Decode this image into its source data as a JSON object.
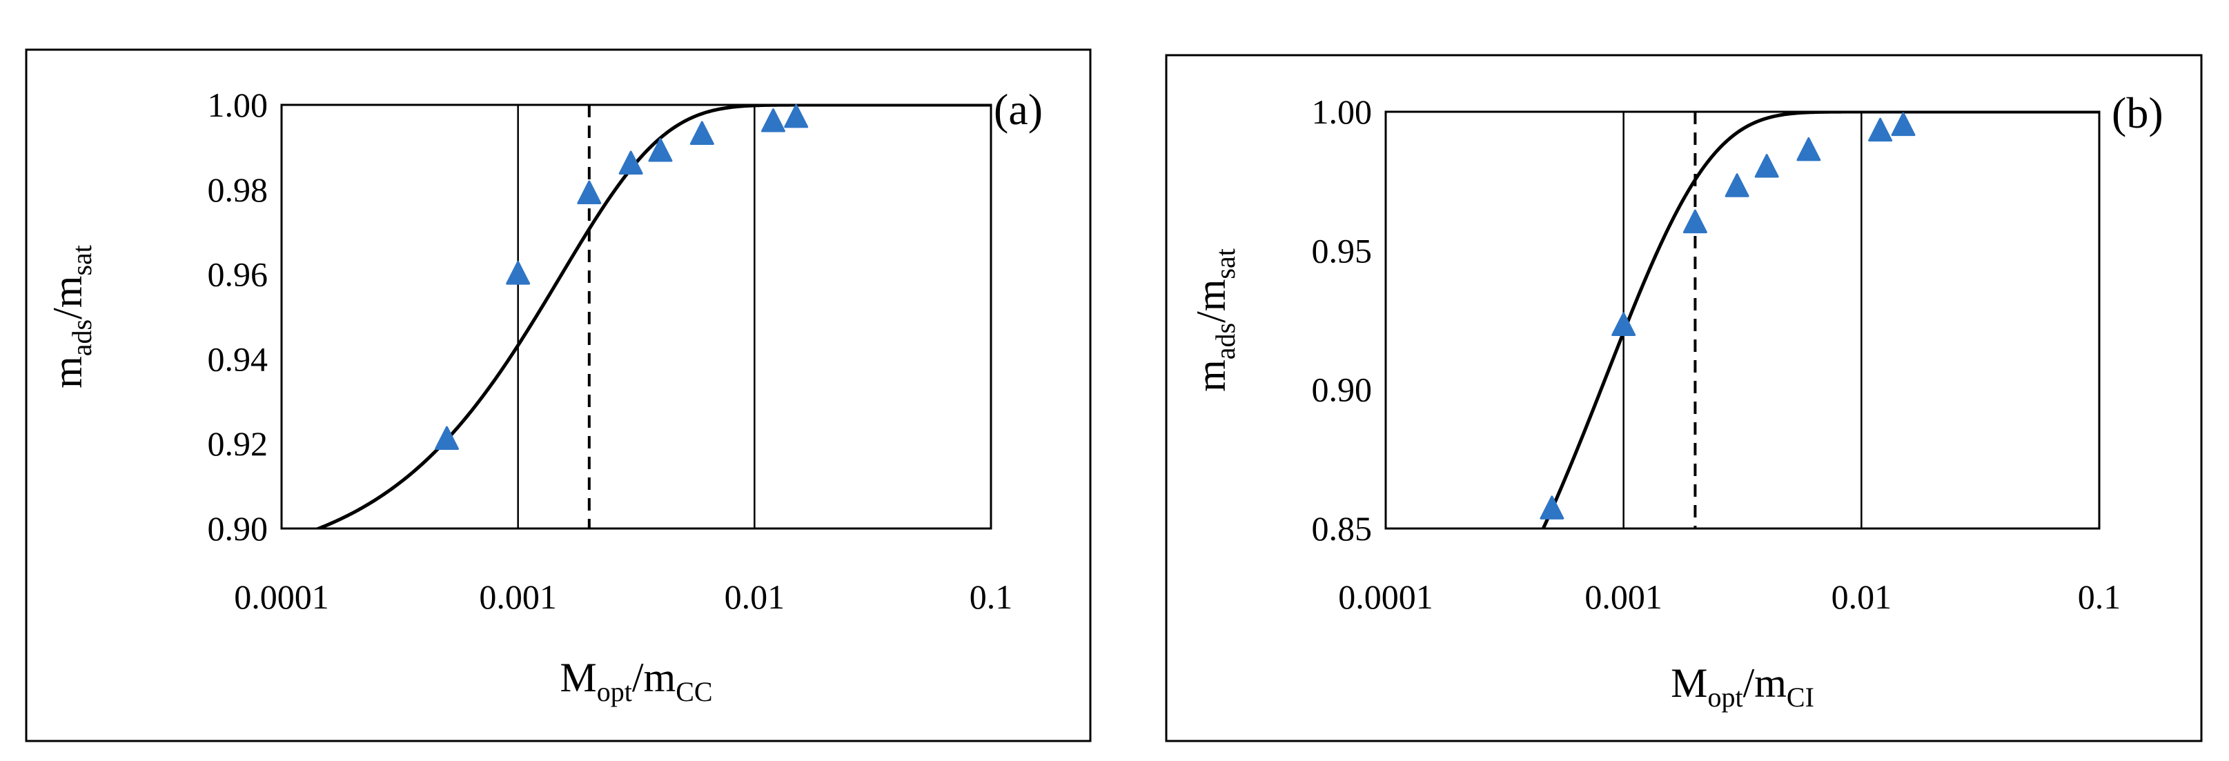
{
  "chart_data": [
    {
      "type": "scatter",
      "panel_label": "(a)",
      "xlabel": {
        "main": "M",
        "sub1": "opt",
        "mid": "/m",
        "sub2": "CC"
      },
      "ylabel": {
        "main": "m",
        "sub1": "ads",
        "mid": "/m",
        "sub2": "sat"
      },
      "x_scale": "log",
      "xlim": [
        0.0001,
        0.1
      ],
      "ylim": [
        0.9,
        1.0
      ],
      "x_ticks": [
        "0.0001",
        "0.001",
        "0.01",
        "0.1"
      ],
      "y_ticks": [
        "0.90",
        "0.92",
        "0.94",
        "0.96",
        "0.98",
        "1.00"
      ],
      "vertical_lines": [
        {
          "x": 0.001,
          "style": "solid"
        },
        {
          "x": 0.002,
          "style": "dashed"
        },
        {
          "x": 0.01,
          "style": "solid"
        }
      ],
      "fit_curve": {
        "model": "1 - (1-y0)*exp(-k*(x-x0))",
        "x0": 0.0005,
        "y0": 0.921,
        "k": 661.2
      },
      "marker_color": "#2E75C5",
      "series": [
        {
          "x": [
            0.0005,
            0.001,
            0.002,
            0.003,
            0.004,
            0.006,
            0.012,
            0.015
          ],
          "y": [
            0.921,
            0.96,
            0.979,
            0.986,
            0.989,
            0.993,
            0.996,
            0.997
          ]
        }
      ]
    },
    {
      "type": "scatter",
      "panel_label": "(b)",
      "xlabel": {
        "main": "M",
        "sub1": "opt",
        "mid": "/m",
        "sub2": "CI"
      },
      "ylabel": {
        "main": "m",
        "sub1": "ads",
        "mid": "/m",
        "sub2": "sat"
      },
      "x_scale": "log",
      "xlim": [
        0.0001,
        0.1
      ],
      "ylim": [
        0.85,
        1.0
      ],
      "x_ticks": [
        "0.0001",
        "0.001",
        "0.01",
        "0.1"
      ],
      "y_ticks": [
        "0.85",
        "0.90",
        "0.95",
        "1.00"
      ],
      "vertical_lines": [
        {
          "x": 0.001,
          "style": "solid"
        },
        {
          "x": 0.002,
          "style": "dashed"
        },
        {
          "x": 0.01,
          "style": "solid"
        }
      ],
      "fit_curve": {
        "model": "1 - (1-y0)*exp(-k*(x-x0))",
        "x0": 0.0005,
        "y0": 0.857,
        "k": 1177
      },
      "marker_color": "#2E75C5",
      "series": [
        {
          "x": [
            0.0005,
            0.001,
            0.002,
            0.003,
            0.004,
            0.006,
            0.012,
            0.015
          ],
          "y": [
            0.857,
            0.923,
            0.96,
            0.973,
            0.98,
            0.986,
            0.993,
            0.995
          ]
        }
      ]
    }
  ]
}
